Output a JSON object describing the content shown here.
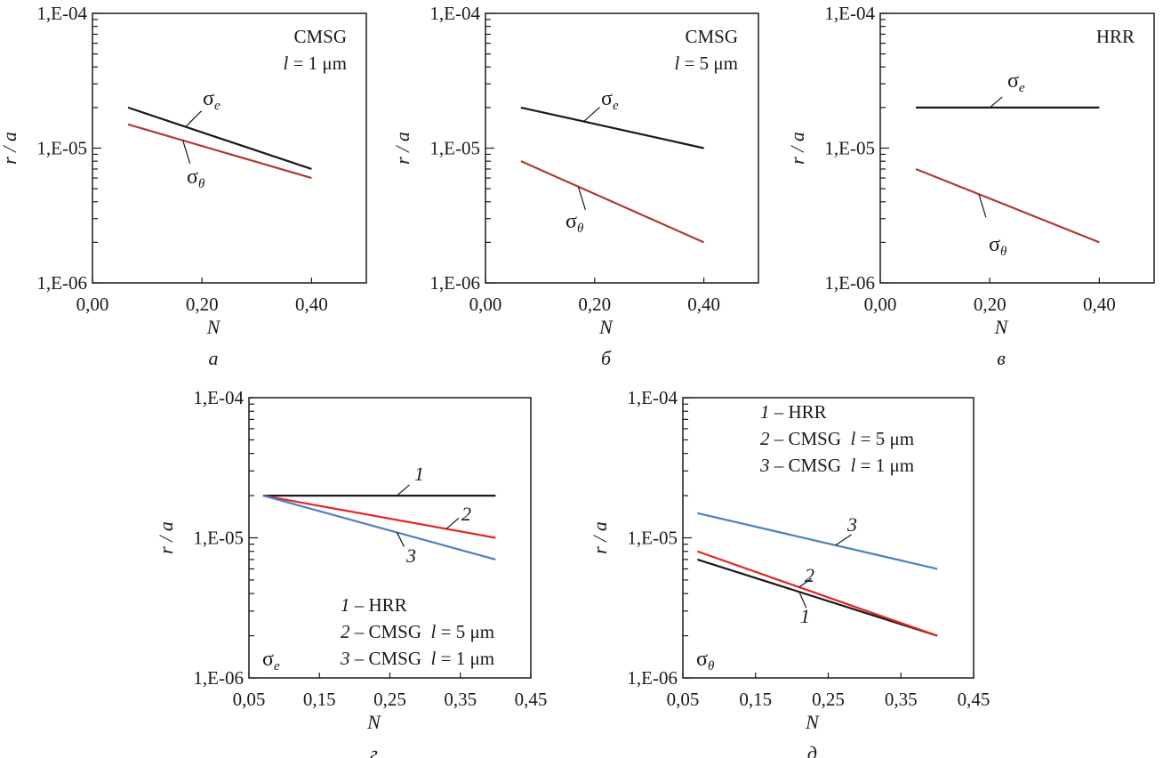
{
  "chart_data": [
    {
      "type": "line",
      "panel_label": "a",
      "ylabel": "r / a",
      "xlabel": "N",
      "y_scale": "log",
      "ylim": [
        1e-06,
        0.0001
      ],
      "yticks": [
        "1,E-06",
        "1,E-05",
        "1,E-04"
      ],
      "xlim": [
        0,
        0.5
      ],
      "xticks": [
        0,
        0.2,
        0.4
      ],
      "xtick_labels": [
        "0,00",
        "0,20",
        "0,40"
      ],
      "box_text": [
        "CMSG",
        "l = 1 μm"
      ],
      "series": [
        {
          "name": "σe",
          "color": "#1a1a1a",
          "x": [
            0.065,
            0.4
          ],
          "y": [
            2e-05,
            7e-06
          ]
        },
        {
          "name": "σθ",
          "color": "#b03a32",
          "x": [
            0.065,
            0.4
          ],
          "y": [
            1.5e-05,
            6e-06
          ]
        }
      ]
    },
    {
      "type": "line",
      "panel_label": "б",
      "ylabel": "r / a",
      "xlabel": "N",
      "y_scale": "log",
      "ylim": [
        1e-06,
        0.0001
      ],
      "yticks": [
        "1,E-06",
        "1,E-05",
        "1,E-04"
      ],
      "xlim": [
        0,
        0.5
      ],
      "xticks": [
        0,
        0.2,
        0.4
      ],
      "xtick_labels": [
        "0,00",
        "0,20",
        "0,40"
      ],
      "box_text": [
        "CMSG",
        "l = 5 μm"
      ],
      "series": [
        {
          "name": "σe",
          "color": "#1a1a1a",
          "x": [
            0.065,
            0.4
          ],
          "y": [
            2e-05,
            1e-05
          ]
        },
        {
          "name": "σθ",
          "color": "#b03a32",
          "x": [
            0.065,
            0.4
          ],
          "y": [
            8e-06,
            2e-06
          ]
        }
      ]
    },
    {
      "type": "line",
      "panel_label": "в",
      "ylabel": "r / a",
      "xlabel": "N",
      "y_scale": "log",
      "ylim": [
        1e-06,
        0.0001
      ],
      "yticks": [
        "1,E-06",
        "1,E-05",
        "1,E-04"
      ],
      "xlim": [
        0,
        0.5
      ],
      "xticks": [
        0,
        0.2,
        0.4
      ],
      "xtick_labels": [
        "0,00",
        "0,20",
        "0,40"
      ],
      "box_text": [
        "HRR"
      ],
      "series": [
        {
          "name": "σe",
          "color": "#1a1a1a",
          "x": [
            0.065,
            0.4
          ],
          "y": [
            2e-05,
            2e-05
          ]
        },
        {
          "name": "σθ",
          "color": "#b03a32",
          "x": [
            0.065,
            0.4
          ],
          "y": [
            7e-06,
            2e-06
          ]
        }
      ]
    },
    {
      "type": "line",
      "panel_label": "г",
      "ylabel": "r / a",
      "xlabel": "N",
      "y_scale": "log",
      "ylim": [
        1e-06,
        0.0001
      ],
      "yticks": [
        "1,E-06",
        "1,E-05",
        "1,E-04"
      ],
      "xlim": [
        0.05,
        0.45
      ],
      "xticks": [
        0.05,
        0.15,
        0.25,
        0.35,
        0.45
      ],
      "xtick_labels": [
        "0,05",
        "0,15",
        "0,25",
        "0,35",
        "0,45"
      ],
      "box_text": [
        "σe"
      ],
      "legend": [
        {
          "num": "1",
          "text": "– HRR"
        },
        {
          "num": "2",
          "text": "– CMSG  l = 5 μm"
        },
        {
          "num": "3",
          "text": "– CMSG  l = 1 μm"
        }
      ],
      "series": [
        {
          "name": "1",
          "color": "#1a1a1a",
          "x": [
            0.07,
            0.4
          ],
          "y": [
            2e-05,
            2e-05
          ]
        },
        {
          "name": "2",
          "color": "#e0262a",
          "x": [
            0.07,
            0.4
          ],
          "y": [
            2e-05,
            1e-05
          ]
        },
        {
          "name": "3",
          "color": "#4f7fbf",
          "x": [
            0.07,
            0.4
          ],
          "y": [
            2e-05,
            7e-06
          ]
        }
      ]
    },
    {
      "type": "line",
      "panel_label": "д",
      "ylabel": "r / a",
      "xlabel": "N",
      "y_scale": "log",
      "ylim": [
        1e-06,
        0.0001
      ],
      "yticks": [
        "1,E-06",
        "1,E-05",
        "1,E-04"
      ],
      "xlim": [
        0.05,
        0.45
      ],
      "xticks": [
        0.05,
        0.15,
        0.25,
        0.35,
        0.45
      ],
      "xtick_labels": [
        "0,05",
        "0,15",
        "0,25",
        "0,35",
        "0,45"
      ],
      "box_text": [
        "σθ"
      ],
      "legend": [
        {
          "num": "1",
          "text": "– HRR"
        },
        {
          "num": "2",
          "text": "– CMSG  l = 5 μm"
        },
        {
          "num": "3",
          "text": "– CMSG  l = 1 μm"
        }
      ],
      "series": [
        {
          "name": "1",
          "color": "#1a1a1a",
          "x": [
            0.07,
            0.4
          ],
          "y": [
            7e-06,
            2e-06
          ]
        },
        {
          "name": "2",
          "color": "#e0262a",
          "x": [
            0.07,
            0.4
          ],
          "y": [
            8e-06,
            2e-06
          ]
        },
        {
          "name": "3",
          "color": "#4f7fbf",
          "x": [
            0.07,
            0.4
          ],
          "y": [
            1.5e-05,
            6e-06
          ]
        }
      ]
    }
  ]
}
